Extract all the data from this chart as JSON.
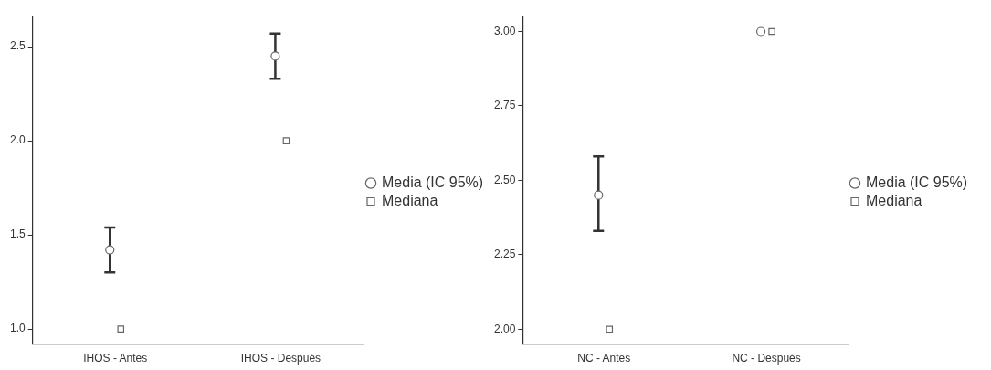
{
  "chart_data": [
    {
      "type": "scatter",
      "categories": [
        "IHOS - Antes",
        "IHOS - Después"
      ],
      "ylim": [
        0.92,
        2.66
      ],
      "yticks": [
        {
          "value": 1,
          "label": "1.0"
        },
        {
          "value": 1.5,
          "label": "1.5"
        },
        {
          "value": 2,
          "label": "2.0"
        },
        {
          "value": 2.5,
          "label": "2.5"
        }
      ],
      "grid": false,
      "legend": "right",
      "series": [
        {
          "name": "Media (IC 95%)",
          "color": "#666666",
          "marker": "circle",
          "values": [
            1.42,
            2.45
          ],
          "errors": [
            [
              1.3,
              1.54
            ],
            [
              2.33,
              2.57
            ]
          ]
        },
        {
          "name": "Mediana",
          "color": "#666666",
          "marker": "square",
          "values": [
            1,
            2
          ]
        }
      ]
    },
    {
      "type": "scatter",
      "categories": [
        "NC - Antes",
        "NC - Después"
      ],
      "ylim": [
        1.95,
        3.05
      ],
      "yticks": [
        {
          "value": 2,
          "label": "2.00"
        },
        {
          "value": 2.25,
          "label": "2.25"
        },
        {
          "value": 2.5,
          "label": "2.50"
        },
        {
          "value": 2.75,
          "label": "2.75"
        },
        {
          "value": 3,
          "label": "3.00"
        }
      ],
      "grid": false,
      "legend": "right",
      "series": [
        {
          "name": "Media (IC 95%)",
          "color": "#666666",
          "marker": "circle",
          "values": [
            2.45,
            3
          ],
          "errors": [
            [
              2.33,
              2.58
            ],
            null
          ]
        },
        {
          "name": "Mediana",
          "color": "#666666",
          "marker": "square",
          "values": [
            2,
            3
          ]
        }
      ]
    }
  ]
}
